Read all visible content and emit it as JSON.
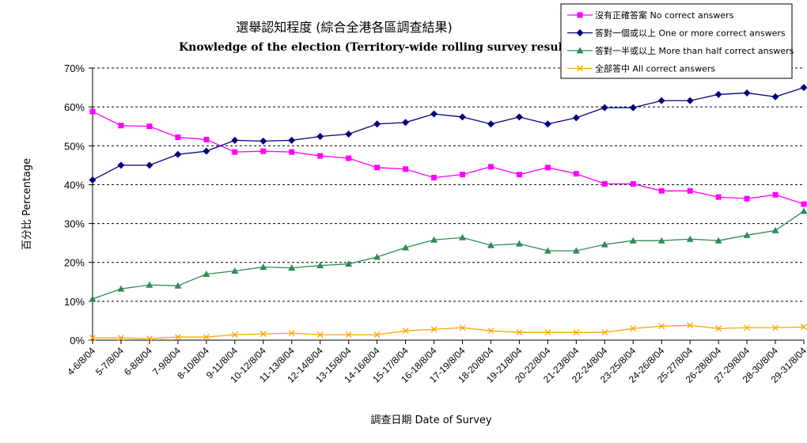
{
  "chart_data": {
    "type": "line",
    "title": "選舉認知程度 (綜合全港各區調查結果)",
    "subtitle": "Knowledge of the election (Territory-wide rolling survey result)",
    "xlabel": "調查日期 Date of Survey",
    "ylabel": "百分比 Percentage",
    "ylim": [
      0,
      70
    ],
    "yticks": [
      "0%",
      "10%",
      "20%",
      "30%",
      "40%",
      "50%",
      "60%",
      "70%"
    ],
    "grid": true,
    "legend_position": "top-right",
    "categories": [
      "4-6/8/04",
      "5-7/8/04",
      "6-8/8/04",
      "7-9/8/04",
      "8-10/8/04",
      "9-11/8/04",
      "10-12/8/04",
      "11-13/8/04",
      "12-14/8/04",
      "13-15/8/04",
      "14-16/8/04",
      "15-17/8/04",
      "16-18/8/04",
      "17-19/8/04",
      "18-20/8/04",
      "19-21/8/04",
      "20-22/8/04",
      "21-23/8/04",
      "22-24/8/04",
      "23-25/8/04",
      "24-26/8/04",
      "25-27/8/04",
      "26-28/8/04",
      "27-29/8/04",
      "28-30/8/04",
      "29-31/8/04"
    ],
    "series": [
      {
        "name": "沒有正確答案 No correct answers",
        "color": "#ff00ff",
        "marker": "square",
        "values": [
          58.8,
          55.2,
          55.0,
          52.2,
          51.6,
          48.4,
          48.6,
          48.4,
          47.4,
          46.8,
          44.4,
          44.0,
          41.8,
          42.6,
          44.6,
          42.6,
          44.4,
          42.8,
          40.2,
          40.2,
          38.4,
          38.4,
          36.8,
          36.4,
          37.4,
          35.0
        ]
      },
      {
        "name": "答對一個或以上 One or more correct answers",
        "color": "#000080",
        "marker": "diamond",
        "values": [
          41.2,
          45.0,
          45.0,
          47.8,
          48.6,
          51.4,
          51.2,
          51.4,
          52.4,
          53.0,
          55.6,
          56.0,
          58.2,
          57.4,
          55.6,
          57.4,
          55.6,
          57.2,
          59.8,
          59.8,
          61.6,
          61.6,
          63.2,
          63.6,
          62.6,
          65.0
        ]
      },
      {
        "name": "答對一半或以上 More than half correct answers",
        "color": "#2e8b57",
        "marker": "triangle",
        "values": [
          10.6,
          13.2,
          14.2,
          14.0,
          17.0,
          17.8,
          18.8,
          18.6,
          19.2,
          19.6,
          21.4,
          23.8,
          25.8,
          26.4,
          24.4,
          24.8,
          23.0,
          23.0,
          24.6,
          25.6,
          25.6,
          26.0,
          25.6,
          27.0,
          28.2,
          33.2
        ]
      },
      {
        "name": "全部答中 All correct answers",
        "color": "#ffa500",
        "marker": "x",
        "values": [
          0.6,
          0.6,
          0.4,
          0.8,
          0.8,
          1.4,
          1.6,
          1.8,
          1.4,
          1.4,
          1.4,
          2.4,
          2.8,
          3.2,
          2.4,
          2.0,
          2.0,
          2.0,
          2.0,
          3.0,
          3.6,
          3.8,
          3.0,
          3.2,
          3.2,
          3.4
        ]
      }
    ]
  }
}
